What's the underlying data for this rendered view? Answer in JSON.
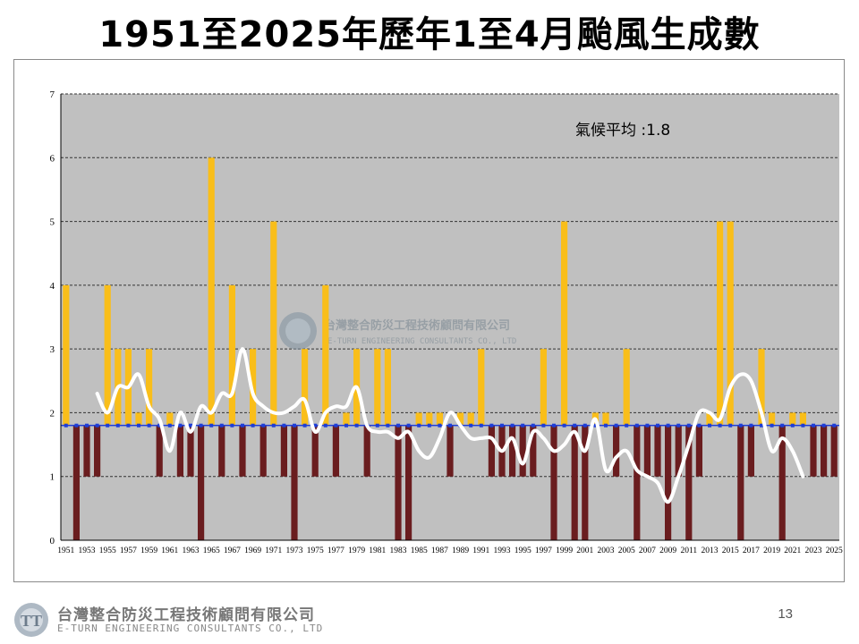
{
  "page": {
    "title": "1951至2025年歷年1至4月颱風生成數",
    "page_number": "13"
  },
  "watermark": {
    "company_cn": "台灣整合防災工程技術顧問有限公司",
    "company_en": "E-TURN ENGINEERING CONSULTANTS CO., LTD"
  },
  "footer": {
    "company_cn": "台灣整合防災工程技術顧問有限公司",
    "company_en": "E-TURN ENGINEERING CONSULTANTS CO., LTD"
  },
  "chart_data": {
    "type": "bar",
    "title": "1951至2025年歷年1至4月颱風生成數",
    "x": [
      1951,
      1952,
      1953,
      1954,
      1955,
      1956,
      1957,
      1958,
      1959,
      1960,
      1961,
      1962,
      1963,
      1964,
      1965,
      1966,
      1967,
      1968,
      1969,
      1970,
      1971,
      1972,
      1973,
      1974,
      1975,
      1976,
      1977,
      1978,
      1979,
      1980,
      1981,
      1982,
      1983,
      1984,
      1985,
      1986,
      1987,
      1988,
      1989,
      1990,
      1991,
      1992,
      1993,
      1994,
      1995,
      1996,
      1997,
      1998,
      1999,
      2000,
      2001,
      2002,
      2003,
      2004,
      2005,
      2006,
      2007,
      2008,
      2009,
      2010,
      2011,
      2012,
      2013,
      2014,
      2015,
      2016,
      2017,
      2018,
      2019,
      2020,
      2021,
      2022,
      2023,
      2024,
      2025
    ],
    "x_tick_labels": [
      "1951",
      "1953",
      "1955",
      "1957",
      "1959",
      "1961",
      "1963",
      "1965",
      "1967",
      "1969",
      "1971",
      "1973",
      "1975",
      "1977",
      "1979",
      "1981",
      "1983",
      "1985",
      "1987",
      "1989",
      "1991",
      "1993",
      "1995",
      "1997",
      "1999",
      "2001",
      "2003",
      "2005",
      "2007",
      "2009",
      "2011",
      "2013",
      "2015",
      "2017",
      "2019",
      "2021",
      "2023",
      "2025"
    ],
    "series": [
      {
        "values": [
          4,
          0,
          1,
          1,
          4,
          3,
          3,
          2,
          3,
          1,
          2,
          1,
          1,
          0,
          6,
          1,
          4,
          1,
          3,
          1,
          5,
          1,
          0,
          3,
          1,
          4,
          1,
          2,
          3,
          1,
          3,
          3,
          0,
          0,
          2,
          2,
          2,
          1,
          2,
          2,
          3,
          1,
          1,
          1,
          1,
          1,
          3,
          0,
          5,
          0,
          0,
          2,
          2,
          1,
          3,
          0,
          1,
          1,
          0,
          1,
          0,
          1,
          2,
          5,
          5,
          0,
          1,
          3,
          2,
          0,
          2,
          2,
          1,
          1,
          1
        ]
      }
    ],
    "trend_line": {
      "style": "smoothed",
      "x": [
        1954,
        1955,
        1956,
        1957,
        1958,
        1959,
        1960,
        1961,
        1962,
        1963,
        1964,
        1965,
        1966,
        1967,
        1968,
        1969,
        1970,
        1971,
        1972,
        1973,
        1974,
        1975,
        1976,
        1977,
        1978,
        1979,
        1980,
        1981,
        1982,
        1983,
        1984,
        1985,
        1986,
        1987,
        1988,
        1989,
        1990,
        1991,
        1992,
        1993,
        1994,
        1995,
        1996,
        1997,
        1998,
        1999,
        2000,
        2001,
        2002,
        2003,
        2004,
        2005,
        2006,
        2007,
        2008,
        2009,
        2010,
        2011,
        2012,
        2013,
        2014,
        2015,
        2016,
        2017,
        2018,
        2019,
        2020,
        2021,
        2022
      ],
      "values": [
        2.3,
        2.0,
        2.4,
        2.4,
        2.6,
        2.1,
        1.9,
        1.4,
        2.0,
        1.7,
        2.1,
        2.0,
        2.3,
        2.3,
        3.0,
        2.3,
        2.1,
        2.0,
        2.0,
        2.1,
        2.2,
        1.7,
        2.0,
        2.1,
        2.1,
        2.4,
        1.8,
        1.7,
        1.7,
        1.6,
        1.7,
        1.4,
        1.3,
        1.6,
        2.0,
        1.8,
        1.6,
        1.6,
        1.6,
        1.4,
        1.6,
        1.2,
        1.7,
        1.6,
        1.4,
        1.5,
        1.7,
        1.4,
        1.9,
        1.1,
        1.3,
        1.4,
        1.1,
        1.0,
        0.9,
        0.6,
        1.0,
        1.5,
        2.0,
        2.0,
        1.9,
        2.4,
        2.6,
        2.5,
        2.0,
        1.4,
        1.6,
        1.4,
        1.0
      ]
    },
    "climate_average": 1.8,
    "climate_label": "氣候平均 :1.8",
    "ylim": [
      0,
      7
    ],
    "y_ticks": [
      0,
      1,
      2,
      3,
      4,
      5,
      6,
      7
    ],
    "grid": true,
    "colors": {
      "above_average": "#f9be1a",
      "below_average": "#6a1d1f",
      "average_line": "#1e3ed8",
      "trend_line": "#ffffff",
      "plot_background": "#c0c0c0",
      "grid": "#333333"
    }
  }
}
